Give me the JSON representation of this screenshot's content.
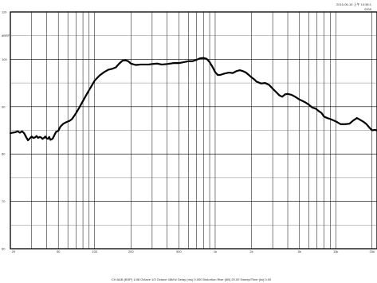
{
  "chart_data": {
    "type": "line",
    "title": "",
    "timestamp": "2015-06-16 上午 10:56:1",
    "series_code": "0205",
    "xlabel": "",
    "ylabel": "",
    "x_scale": "log",
    "xlim": [
      20,
      22000
    ],
    "ylim": [
      60,
      110
    ],
    "grid": true,
    "x_tick_labels": [
      {
        "x": 20,
        "label": "20"
      },
      {
        "x": 50,
        "label": "50"
      },
      {
        "x": 100,
        "label": "100"
      },
      {
        "x": 200,
        "label": "200"
      },
      {
        "x": 500,
        "label": "500"
      },
      {
        "x": 1000,
        "label": "1k"
      },
      {
        "x": 2000,
        "label": "2k"
      },
      {
        "x": 5000,
        "label": "5k"
      },
      {
        "x": 10000,
        "label": "10k"
      },
      {
        "x": 20000,
        "label": "20k"
      }
    ],
    "y_tick_labels": [
      {
        "y": 110,
        "label": "110"
      },
      {
        "y": 105,
        "label": "dBSPL"
      },
      {
        "y": 100,
        "label": "100"
      },
      {
        "y": 90,
        "label": "90"
      },
      {
        "y": 80,
        "label": "80"
      },
      {
        "y": 70,
        "label": "70"
      },
      {
        "y": 60,
        "label": "60"
      }
    ],
    "footer": "CH A&B  (BSP)  1/48 Octave  1/3 Octave  48kHz  Delay (ms) 0.000  Distortion Rise (dB) 20.00  Sweep/Time (ks) 0.00",
    "series": [
      {
        "name": "",
        "color": "#000000",
        "points": [
          [
            20,
            84.4
          ],
          [
            21,
            84.5
          ],
          [
            22,
            84.6
          ],
          [
            23,
            84.8
          ],
          [
            24,
            84.5
          ],
          [
            25,
            84.8
          ],
          [
            26,
            84.4
          ],
          [
            27,
            83.6
          ],
          [
            28,
            82.9
          ],
          [
            29,
            83.3
          ],
          [
            30,
            83.7
          ],
          [
            31,
            83.4
          ],
          [
            32,
            83.5
          ],
          [
            33,
            83.8
          ],
          [
            34,
            83.4
          ],
          [
            35,
            83.6
          ],
          [
            36,
            83.5
          ],
          [
            37,
            83.2
          ],
          [
            38,
            83.4
          ],
          [
            39,
            83.7
          ],
          [
            40,
            83.3
          ],
          [
            41,
            83.2
          ],
          [
            42,
            83.6
          ],
          [
            43,
            83.0
          ],
          [
            44,
            83.1
          ],
          [
            45,
            83.3
          ],
          [
            46,
            83.8
          ],
          [
            47,
            84.3
          ],
          [
            48,
            84.7
          ],
          [
            50,
            84.9
          ],
          [
            52,
            85.8
          ],
          [
            55,
            86.4
          ],
          [
            58,
            86.7
          ],
          [
            62,
            87.0
          ],
          [
            65,
            87.4
          ],
          [
            70,
            88.6
          ],
          [
            75,
            89.9
          ],
          [
            80,
            91.2
          ],
          [
            85,
            92.4
          ],
          [
            90,
            93.5
          ],
          [
            95,
            94.5
          ],
          [
            100,
            95.5
          ],
          [
            110,
            96.6
          ],
          [
            120,
            97.3
          ],
          [
            130,
            97.8
          ],
          [
            140,
            98.0
          ],
          [
            150,
            98.3
          ],
          [
            160,
            99.1
          ],
          [
            170,
            99.7
          ],
          [
            180,
            99.8
          ],
          [
            190,
            99.6
          ],
          [
            200,
            99.1
          ],
          [
            220,
            98.8
          ],
          [
            240,
            98.9
          ],
          [
            260,
            98.9
          ],
          [
            280,
            98.9
          ],
          [
            300,
            99.0
          ],
          [
            330,
            99.1
          ],
          [
            360,
            98.9
          ],
          [
            400,
            99.0
          ],
          [
            450,
            99.2
          ],
          [
            500,
            99.2
          ],
          [
            550,
            99.4
          ],
          [
            600,
            99.6
          ],
          [
            650,
            99.6
          ],
          [
            700,
            99.9
          ],
          [
            750,
            100.2
          ],
          [
            800,
            100.3
          ],
          [
            850,
            100.1
          ],
          [
            900,
            99.4
          ],
          [
            950,
            98.4
          ],
          [
            1000,
            97.3
          ],
          [
            1050,
            96.7
          ],
          [
            1100,
            96.7
          ],
          [
            1200,
            97.0
          ],
          [
            1300,
            97.2
          ],
          [
            1400,
            97.1
          ],
          [
            1500,
            97.5
          ],
          [
            1600,
            97.7
          ],
          [
            1700,
            97.5
          ],
          [
            1800,
            97.2
          ],
          [
            1900,
            96.7
          ],
          [
            2000,
            96.2
          ],
          [
            2100,
            95.8
          ],
          [
            2200,
            95.3
          ],
          [
            2400,
            94.9
          ],
          [
            2600,
            95.0
          ],
          [
            2800,
            94.6
          ],
          [
            3000,
            93.8
          ],
          [
            3200,
            93.1
          ],
          [
            3400,
            92.4
          ],
          [
            3600,
            92.1
          ],
          [
            3800,
            92.6
          ],
          [
            4000,
            92.7
          ],
          [
            4300,
            92.5
          ],
          [
            4600,
            92.1
          ],
          [
            5000,
            91.5
          ],
          [
            5300,
            91.2
          ],
          [
            5600,
            90.9
          ],
          [
            6000,
            90.4
          ],
          [
            6400,
            89.8
          ],
          [
            6800,
            89.6
          ],
          [
            7200,
            89.1
          ],
          [
            7600,
            88.7
          ],
          [
            8000,
            87.9
          ],
          [
            8500,
            87.6
          ],
          [
            9000,
            87.4
          ],
          [
            10000,
            86.9
          ],
          [
            11000,
            86.3
          ],
          [
            12000,
            86.3
          ],
          [
            13000,
            86.4
          ],
          [
            14000,
            87.1
          ],
          [
            15000,
            87.6
          ],
          [
            16000,
            87.2
          ],
          [
            17000,
            86.8
          ],
          [
            18000,
            86.3
          ],
          [
            19000,
            85.6
          ],
          [
            20000,
            85.0
          ],
          [
            21000,
            85.1
          ],
          [
            22000,
            85.0
          ]
        ]
      }
    ]
  }
}
